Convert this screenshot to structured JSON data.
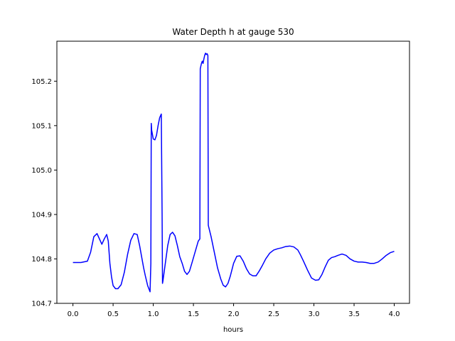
{
  "chart_data": {
    "type": "line",
    "title": "Water Depth h at gauge 530",
    "xlabel": "hours",
    "ylabel": "",
    "xlim": [
      -0.2,
      4.19
    ],
    "ylim": [
      104.7,
      105.29
    ],
    "xticks": [
      0.0,
      0.5,
      1.0,
      1.5,
      2.0,
      2.5,
      3.0,
      3.5,
      4.0
    ],
    "xtick_labels": [
      "0.0",
      "0.5",
      "1.0",
      "1.5",
      "2.0",
      "2.5",
      "3.0",
      "3.5",
      "4.0"
    ],
    "yticks": [
      104.7,
      104.8,
      104.9,
      105.0,
      105.1,
      105.2
    ],
    "ytick_labels": [
      "104.7",
      "104.8",
      "104.9",
      "105.0",
      "105.1",
      "105.2"
    ],
    "grid": false,
    "legend": "none",
    "series": [
      {
        "color": "#0000ff",
        "x": [
          0.0,
          0.1,
          0.18,
          0.22,
          0.26,
          0.3,
          0.33,
          0.36,
          0.39,
          0.42,
          0.44,
          0.46,
          0.48,
          0.5,
          0.53,
          0.56,
          0.6,
          0.64,
          0.68,
          0.72,
          0.76,
          0.8,
          0.83,
          0.86,
          0.88,
          0.9,
          0.93,
          0.96,
          0.97,
          0.975,
          0.98,
          1.0,
          1.02,
          1.04,
          1.06,
          1.08,
          1.1,
          1.11,
          1.115,
          1.12,
          1.15,
          1.18,
          1.21,
          1.24,
          1.27,
          1.3,
          1.33,
          1.36,
          1.39,
          1.42,
          1.45,
          1.48,
          1.52,
          1.56,
          1.58,
          1.585,
          1.59,
          1.6,
          1.61,
          1.62,
          1.63,
          1.64,
          1.65,
          1.66,
          1.67,
          1.68,
          1.685,
          1.69,
          1.72,
          1.76,
          1.8,
          1.84,
          1.87,
          1.9,
          1.93,
          1.96,
          2.0,
          2.04,
          2.08,
          2.12,
          2.16,
          2.2,
          2.24,
          2.28,
          2.32,
          2.36,
          2.4,
          2.45,
          2.5,
          2.55,
          2.6,
          2.65,
          2.7,
          2.75,
          2.8,
          2.83,
          2.87,
          2.92,
          2.97,
          3.02,
          3.06,
          3.1,
          3.14,
          3.18,
          3.22,
          3.26,
          3.3,
          3.35,
          3.4,
          3.45,
          3.5,
          3.55,
          3.6,
          3.65,
          3.7,
          3.75,
          3.8,
          3.85,
          3.9,
          3.95,
          4.0
        ],
        "y": [
          104.792,
          104.792,
          104.795,
          104.815,
          104.85,
          104.857,
          104.845,
          104.833,
          104.845,
          104.855,
          104.84,
          104.79,
          104.76,
          104.74,
          104.733,
          104.733,
          104.742,
          104.77,
          104.81,
          104.842,
          104.857,
          104.855,
          104.83,
          104.8,
          104.78,
          104.763,
          104.74,
          104.726,
          104.79,
          105.105,
          105.09,
          105.07,
          105.068,
          105.078,
          105.1,
          105.118,
          105.126,
          104.9,
          104.745,
          104.75,
          104.79,
          104.83,
          104.855,
          104.86,
          104.852,
          104.83,
          104.805,
          104.79,
          104.772,
          104.765,
          104.772,
          104.79,
          104.815,
          104.84,
          104.845,
          105.228,
          105.232,
          105.24,
          105.245,
          105.24,
          105.25,
          105.258,
          105.263,
          105.26,
          105.262,
          105.258,
          104.876,
          104.872,
          104.85,
          104.815,
          104.78,
          104.755,
          104.741,
          104.737,
          104.745,
          104.762,
          104.79,
          104.806,
          104.807,
          104.795,
          104.778,
          104.766,
          104.762,
          104.762,
          104.773,
          104.786,
          104.8,
          104.813,
          104.82,
          104.823,
          104.825,
          104.828,
          104.829,
          104.827,
          104.82,
          104.81,
          104.795,
          104.775,
          104.757,
          104.752,
          104.753,
          104.765,
          104.782,
          104.797,
          104.803,
          104.805,
          104.808,
          104.811,
          104.808,
          104.8,
          104.795,
          104.793,
          104.793,
          104.792,
          104.79,
          104.79,
          104.793,
          104.8,
          104.808,
          104.814,
          104.817
        ]
      }
    ]
  }
}
